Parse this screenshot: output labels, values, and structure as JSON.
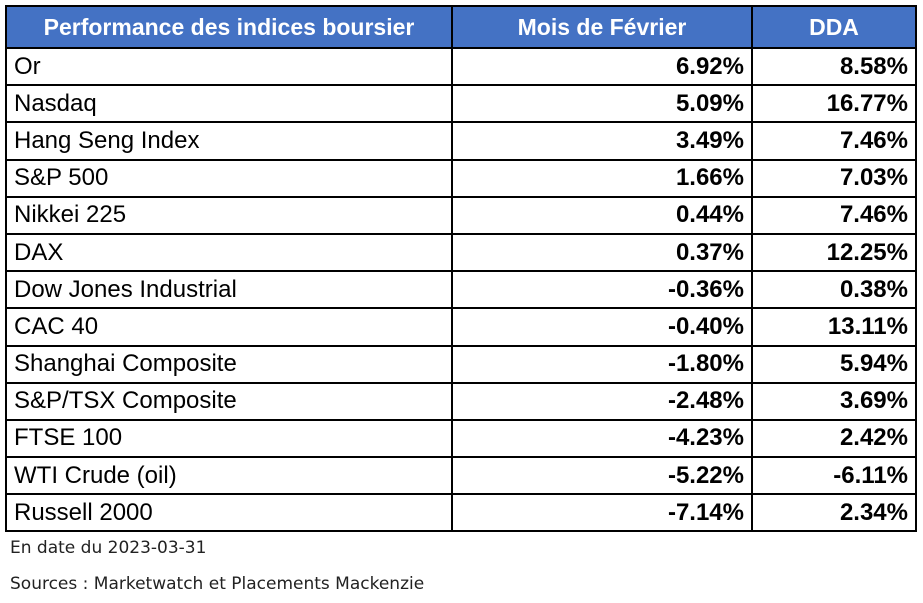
{
  "table": {
    "headers": [
      "Performance des indices boursier",
      "Mois de Février",
      "DDA"
    ],
    "rows": [
      {
        "name": "Or",
        "month": "6.92%",
        "ytd": "8.58%",
        "month_sign": "pos",
        "ytd_sign": "pos"
      },
      {
        "name": "Nasdaq",
        "month": "5.09%",
        "ytd": "16.77%",
        "month_sign": "pos",
        "ytd_sign": "pos"
      },
      {
        "name": "Hang Seng Index",
        "month": "3.49%",
        "ytd": "7.46%",
        "month_sign": "pos",
        "ytd_sign": "pos"
      },
      {
        "name": "S&P 500",
        "month": "1.66%",
        "ytd": "7.03%",
        "month_sign": "pos",
        "ytd_sign": "pos"
      },
      {
        "name": "Nikkei 225",
        "month": "0.44%",
        "ytd": "7.46%",
        "month_sign": "pos",
        "ytd_sign": "pos"
      },
      {
        "name": "DAX",
        "month": "0.37%",
        "ytd": "12.25%",
        "month_sign": "pos",
        "ytd_sign": "pos"
      },
      {
        "name": "Dow Jones Industrial",
        "month": "-0.36%",
        "ytd": "0.38%",
        "month_sign": "neg",
        "ytd_sign": "pos"
      },
      {
        "name": "CAC 40",
        "month": "-0.40%",
        "ytd": "13.11%",
        "month_sign": "neg",
        "ytd_sign": "pos"
      },
      {
        "name": "Shanghai Composite",
        "month": "-1.80%",
        "ytd": "5.94%",
        "month_sign": "neg",
        "ytd_sign": "pos"
      },
      {
        "name": "S&P/TSX Composite",
        "month": "-2.48%",
        "ytd": "3.69%",
        "month_sign": "neg",
        "ytd_sign": "pos"
      },
      {
        "name": "FTSE 100",
        "month": "-4.23%",
        "ytd": "2.42%",
        "month_sign": "neg",
        "ytd_sign": "pos"
      },
      {
        "name": "WTI Crude (oil)",
        "month": "-5.22%",
        "ytd": "-6.11%",
        "month_sign": "neg",
        "ytd_sign": "neg"
      },
      {
        "name": "Russell 2000",
        "month": "-7.14%",
        "ytd": "2.34%",
        "month_sign": "neg",
        "ytd_sign": "pos"
      }
    ]
  },
  "notes": {
    "date": "En date du 2023-03-31",
    "sources": "Sources : Marketwatch et Placements Mackenzie"
  },
  "colors": {
    "header_bg": "#4472c4",
    "header_text": "#ffffff",
    "positive": "#70ad47",
    "negative": "#e00000"
  }
}
